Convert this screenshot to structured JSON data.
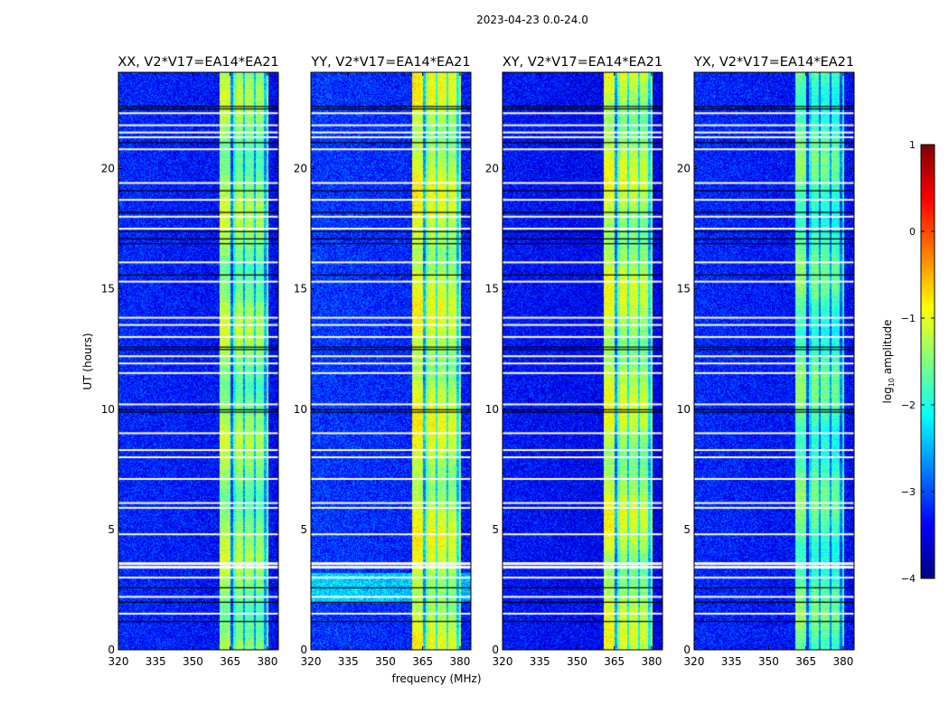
{
  "suptitle": "2023-04-23 0.0-24.0",
  "chart_data": {
    "type": "heatmap",
    "xlabel": "frequency (MHz)",
    "ylabel": "UT (hours)",
    "xlim": [
      320,
      384.4
    ],
    "ylim": [
      0,
      24
    ],
    "xticks": [
      "320",
      "335",
      "350",
      "365",
      "380"
    ],
    "yticks": [
      "0",
      "5",
      "10",
      "15",
      "20"
    ],
    "panels": [
      {
        "title": "XX, V2*V17=EA14*EA21",
        "band_level": -1.3,
        "bg_level": -3.2
      },
      {
        "title": "YY, V2*V17=EA14*EA21",
        "band_level": -1.0,
        "bg_level": -3.1
      },
      {
        "title": "XY, V2*V17=EA14*EA21",
        "band_level": -1.1,
        "bg_level": -3.3
      },
      {
        "title": "YX, V2*V17=EA14*EA21",
        "band_level": -1.6,
        "bg_level": -3.2
      }
    ],
    "rfi_band_mhz": [
      360.7,
      380.2
    ],
    "subband_gaps_mhz": [
      365.5,
      370.5,
      374.8,
      379.0
    ],
    "flagged_white_hours": [
      1.5,
      2.2,
      3.0,
      3.45,
      3.6,
      4.8,
      5.9,
      6.1,
      7.1,
      8.0,
      8.3,
      9.0,
      10.2,
      11.5,
      11.9,
      12.2,
      13.0,
      13.5,
      13.8,
      15.3,
      16.1,
      17.5,
      18.0,
      18.7,
      19.4,
      20.8,
      21.3,
      21.5,
      21.8,
      22.3
    ],
    "flagged_black_hours": [
      1.2,
      2.0,
      2.6,
      9.9,
      10.0,
      12.5,
      12.6,
      15.6,
      16.9,
      17.1,
      17.4,
      18.2,
      19.1,
      21.1,
      22.5,
      22.6
    ],
    "colorbar": {
      "label": "log10 amplitude",
      "range": [
        -4,
        1
      ],
      "ticks": [
        "1",
        "0",
        "−1",
        "−2",
        "−3",
        "−4"
      ],
      "colormap": "jet"
    }
  }
}
